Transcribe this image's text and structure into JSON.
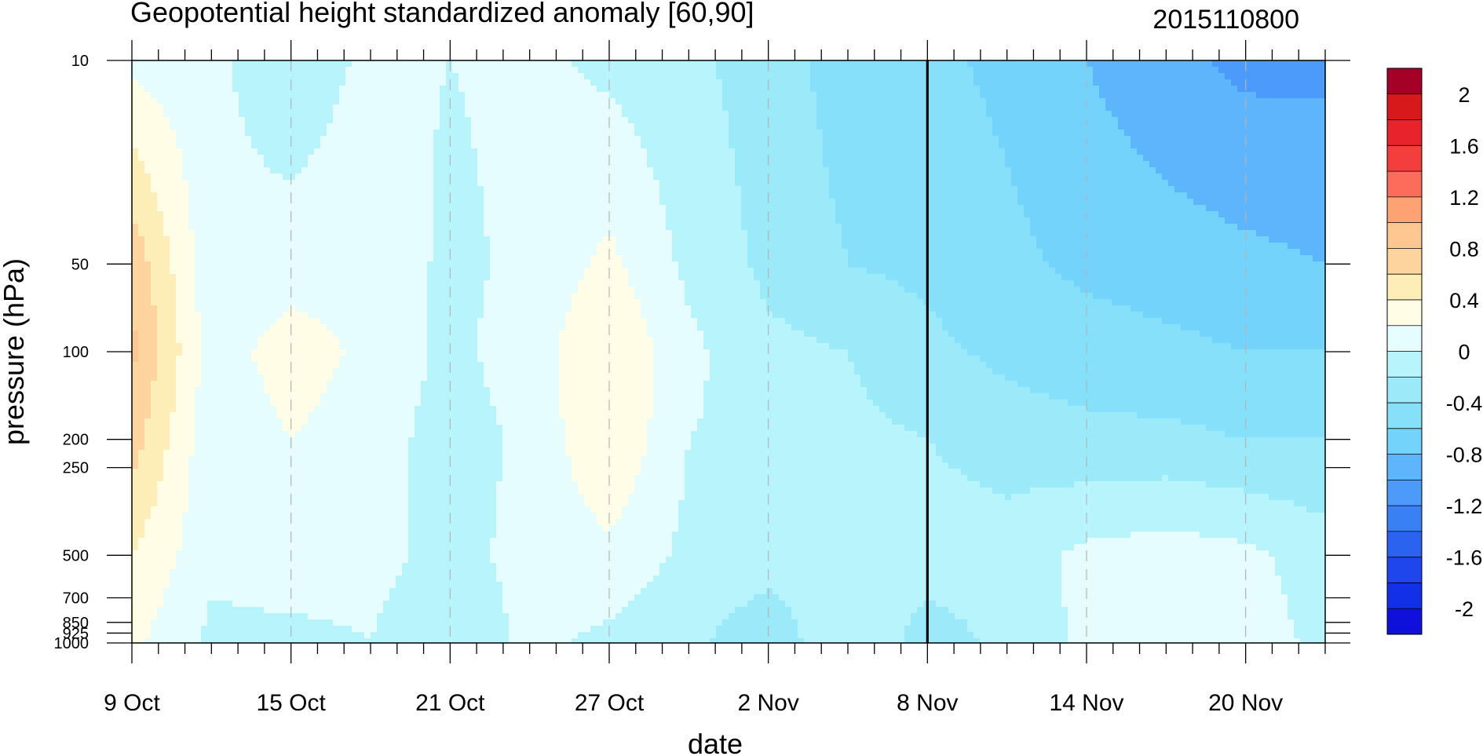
{
  "chart_data": {
    "type": "heatmap",
    "title": "Geopotential height standardized anomaly [60,90]",
    "timestamp": "2015110800",
    "xlabel": "date",
    "ylabel": "pressure (hPa)",
    "x_ticks": [
      "9 Oct",
      "15 Oct",
      "21 Oct",
      "27 Oct",
      "2 Nov",
      "8 Nov",
      "14 Nov",
      "20 Nov"
    ],
    "x_tick_days": [
      0,
      6,
      12,
      18,
      24,
      30,
      36,
      42
    ],
    "x_range_days": [
      0,
      45
    ],
    "y_ticks": [
      "10",
      "50",
      "100",
      "200",
      "250",
      "500",
      "700",
      "850",
      "925",
      "1000"
    ],
    "y_tick_values": [
      10,
      50,
      100,
      200,
      250,
      500,
      700,
      850,
      925,
      1000
    ],
    "y_range": [
      10,
      1000
    ],
    "y_scale": "log",
    "y_reversed": true,
    "grid": "dashed vertical lines at x ticks",
    "current_date_marker": "8 Nov",
    "colorbar": {
      "labels": [
        "2",
        "1.6",
        "1.2",
        "0.8",
        "0.4",
        "0",
        "-0.4",
        "-0.8",
        "-1.2",
        "-1.6",
        "-2"
      ],
      "levels": [
        2.2,
        2.0,
        1.8,
        1.6,
        1.4,
        1.2,
        1.0,
        0.8,
        0.6,
        0.4,
        0.2,
        0.0,
        -0.2,
        -0.4,
        -0.6,
        -0.8,
        -1.0,
        -1.2,
        -1.4,
        -1.6,
        -1.8,
        -2.0,
        -2.2
      ],
      "colors": [
        "#a50026",
        "#d7191c",
        "#e8232b",
        "#f33e3b",
        "#fb6d5a",
        "#fda272",
        "#fdc791",
        "#fdd49e",
        "#fdeeb8",
        "#fffde6",
        "#e6fdff",
        "#b8f4fc",
        "#9beafa",
        "#87e0f9",
        "#74d3fb",
        "#5db5fb",
        "#4c9bfa",
        "#3880f4",
        "#2b62ef",
        "#1f46ec",
        "#1230e8",
        "#1010db"
      ]
    },
    "anomaly_grid": {
      "days": [
        0,
        3,
        6,
        9,
        12,
        15,
        18,
        21,
        24,
        27,
        30,
        33,
        36,
        39,
        42,
        45
      ],
      "pressure": [
        10,
        50,
        100,
        200,
        500,
        1000
      ],
      "values": [
        [
          0.15,
          0.05,
          -0.15,
          0.05,
          0.0,
          0.05,
          -0.05,
          -0.15,
          -0.3,
          -0.5,
          -0.55,
          -0.65,
          -0.8,
          -0.95,
          -1.05,
          -1.05
        ],
        [
          0.75,
          0.05,
          0.1,
          0.15,
          -0.05,
          0.05,
          0.25,
          -0.05,
          -0.25,
          -0.4,
          -0.45,
          -0.55,
          -0.65,
          -0.7,
          -0.75,
          -0.8
        ],
        [
          0.85,
          0.1,
          0.3,
          0.15,
          -0.05,
          0.1,
          0.4,
          0.05,
          -0.15,
          -0.2,
          -0.35,
          -0.45,
          -0.5,
          -0.55,
          -0.6,
          -0.6
        ],
        [
          0.7,
          0.05,
          0.2,
          0.1,
          -0.1,
          0.05,
          0.4,
          0.0,
          -0.05,
          -0.15,
          -0.2,
          -0.3,
          -0.35,
          -0.35,
          -0.4,
          -0.4
        ],
        [
          0.4,
          0.05,
          0.1,
          0.05,
          -0.05,
          0.05,
          0.15,
          -0.05,
          -0.1,
          -0.15,
          -0.1,
          -0.1,
          0.05,
          0.1,
          0.05,
          -0.1
        ],
        [
          0.25,
          -0.05,
          -0.05,
          0.0,
          -0.15,
          0.05,
          -0.05,
          -0.15,
          -0.35,
          0.0,
          -0.3,
          -0.15,
          0.05,
          0.2,
          0.1,
          -0.05
        ]
      ]
    }
  }
}
